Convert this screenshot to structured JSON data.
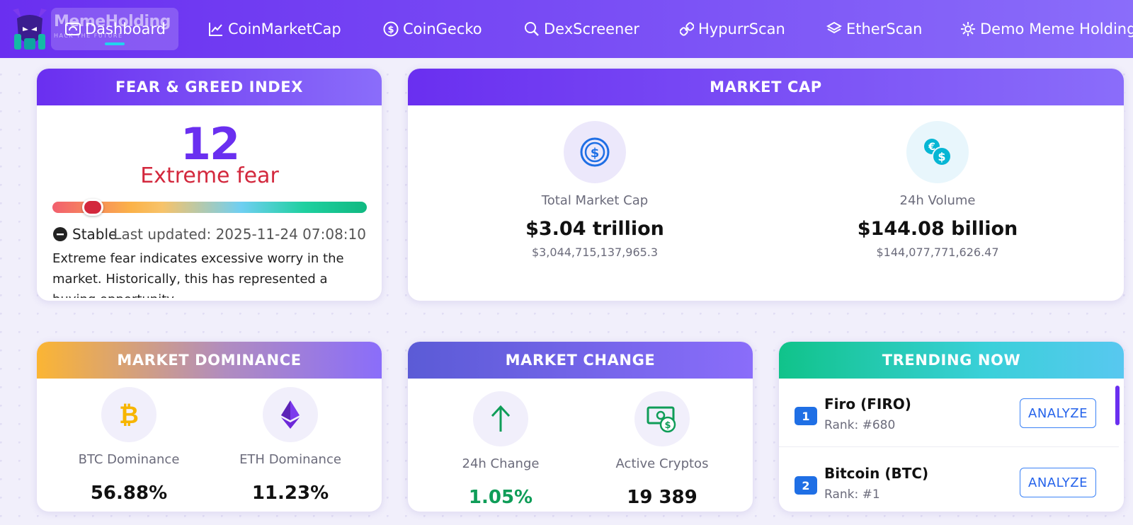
{
  "nav": {
    "brand": "MemeHolding",
    "brand_tagline": "HACK THE FUTURE",
    "items": [
      {
        "label": "Dashboard",
        "icon": "dashboard-icon"
      },
      {
        "label": "CoinMarketCap",
        "icon": "chart-line-icon"
      },
      {
        "label": "CoinGecko",
        "icon": "coin-icon"
      },
      {
        "label": "DexScreener",
        "icon": "search-icon"
      },
      {
        "label": "HypurrScan",
        "icon": "link-icon"
      },
      {
        "label": "EtherScan",
        "icon": "layers-icon"
      },
      {
        "label": "Demo Meme Holding Analysis",
        "icon": "gear-icon"
      }
    ]
  },
  "fear_greed": {
    "title": "FEAR & GREED INDEX",
    "value": "12",
    "value_fraction": 0.12,
    "label": "Extreme fear",
    "status": "Stable",
    "last_updated": "Last updated: 2025-11-24 07:08:10",
    "description": "Extreme fear indicates excessive worry in the market. Historically, this has represented a buying opportunity."
  },
  "market_cap": {
    "title": "MARKET CAP",
    "total_label": "Total Market Cap",
    "total_value": "$3.04 trillion",
    "total_raw": "$3,044,715,137,965.3",
    "volume_label": "24h Volume",
    "volume_value": "$144.08 billion",
    "volume_raw": "$144,077,771,626.47"
  },
  "dominance": {
    "title": "MARKET DOMINANCE",
    "btc_label": "BTC Dominance",
    "btc_value": "56.88%",
    "eth_label": "ETH Dominance",
    "eth_value": "11.23%"
  },
  "change": {
    "title": "MARKET CHANGE",
    "change_label": "24h Change",
    "change_value": "1.05%",
    "active_label": "Active Cryptos",
    "active_value": "19 389"
  },
  "trending": {
    "title": "TRENDING NOW",
    "button_label": "ANALYZE",
    "items": [
      {
        "rank_num": "1",
        "name": "Firo (FIRO)",
        "rank": "Rank: #680"
      },
      {
        "rank_num": "2",
        "name": "Bitcoin (BTC)",
        "rank": "Rank: #1"
      }
    ]
  },
  "colors": {
    "primary": "#6a2ff0",
    "fear_red": "#d3283d",
    "positive_green": "#0f9d58",
    "button_blue": "#2563eb"
  }
}
